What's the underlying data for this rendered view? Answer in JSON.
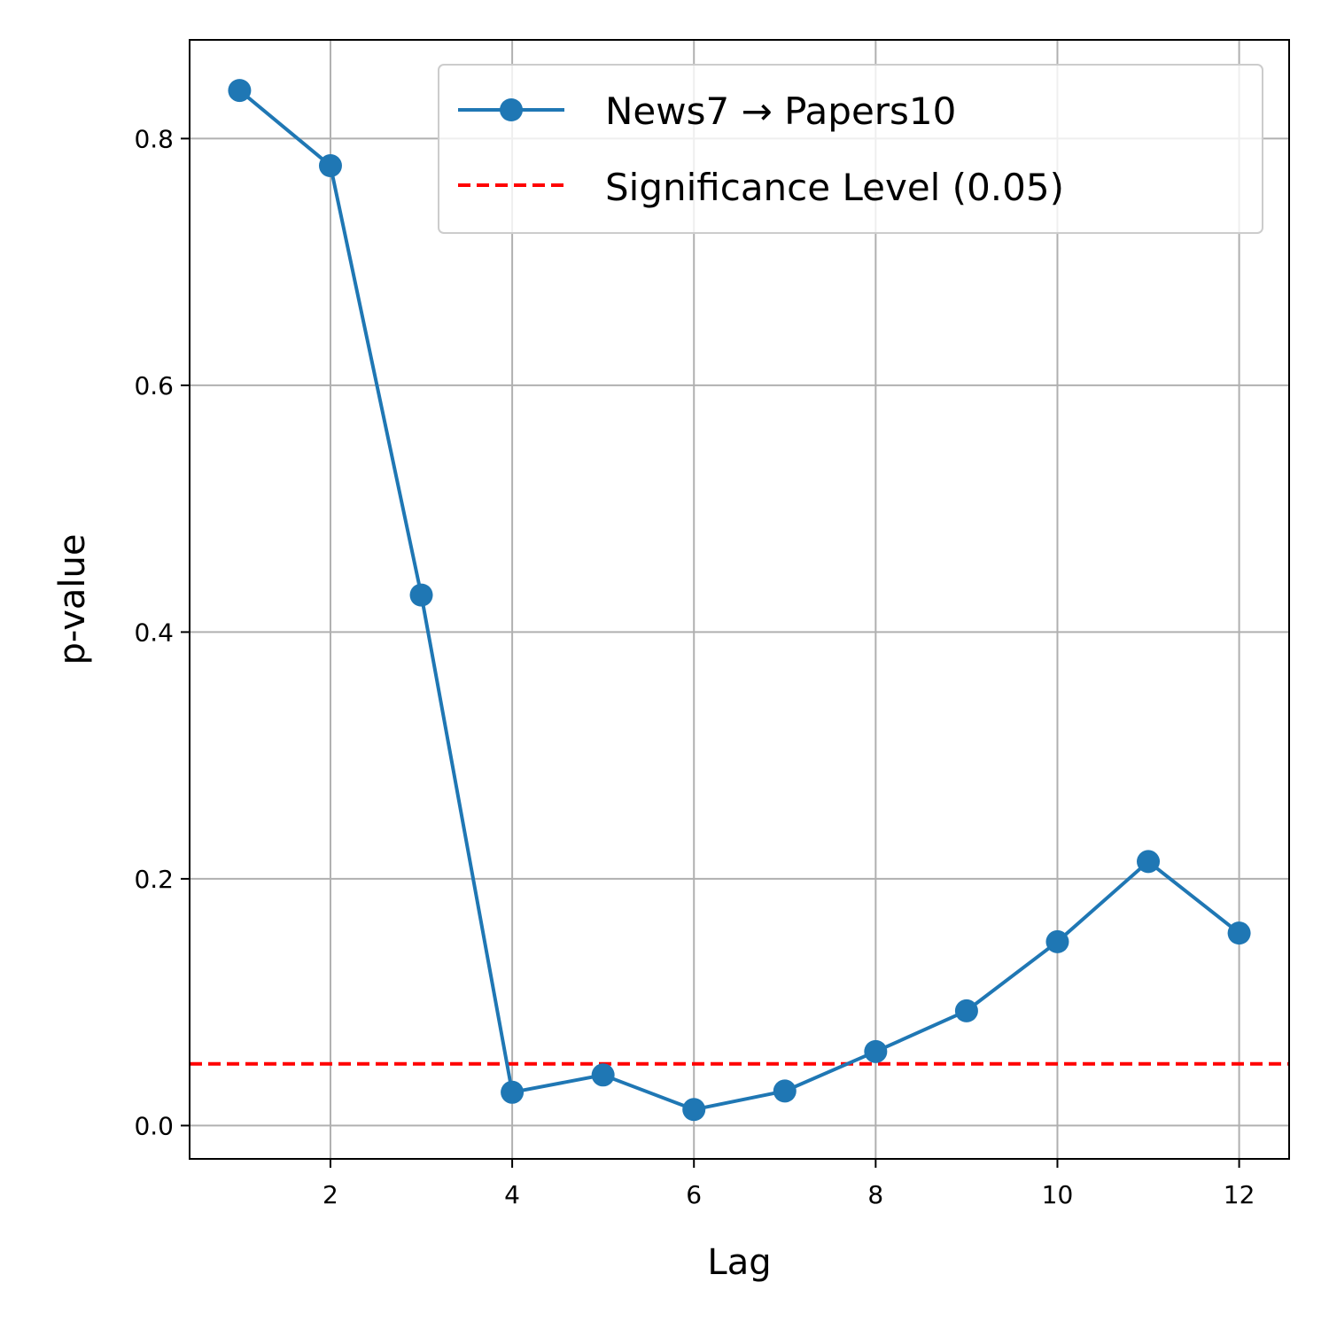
{
  "chart_data": {
    "type": "line",
    "title": "",
    "xlabel": "Lag",
    "ylabel": "p-value",
    "xlim": [
      0.45,
      12.55
    ],
    "ylim": [
      -0.027,
      0.88
    ],
    "xticks": [
      2,
      4,
      6,
      8,
      10,
      12
    ],
    "xtick_labels": [
      "2",
      "4",
      "6",
      "8",
      "10",
      "12"
    ],
    "yticks": [
      0.0,
      0.2,
      0.4,
      0.6,
      0.8
    ],
    "ytick_labels": [
      "0.0",
      "0.2",
      "0.4",
      "0.6",
      "0.8"
    ],
    "grid": true,
    "legend_position": "top-right",
    "series": [
      {
        "name": "News7 → Papers10",
        "color": "#1f77b4",
        "marker": "circle",
        "x": [
          1,
          2,
          3,
          4,
          5,
          6,
          7,
          8,
          9,
          10,
          11,
          12
        ],
        "y": [
          0.839,
          0.778,
          0.43,
          0.027,
          0.041,
          0.013,
          0.028,
          0.06,
          0.093,
          0.149,
          0.214,
          0.156
        ]
      }
    ],
    "reference_lines": [
      {
        "name": "Significance Level (0.05)",
        "orientation": "horizontal",
        "value": 0.05,
        "color": "#ff0000",
        "style": "dashed"
      }
    ]
  }
}
